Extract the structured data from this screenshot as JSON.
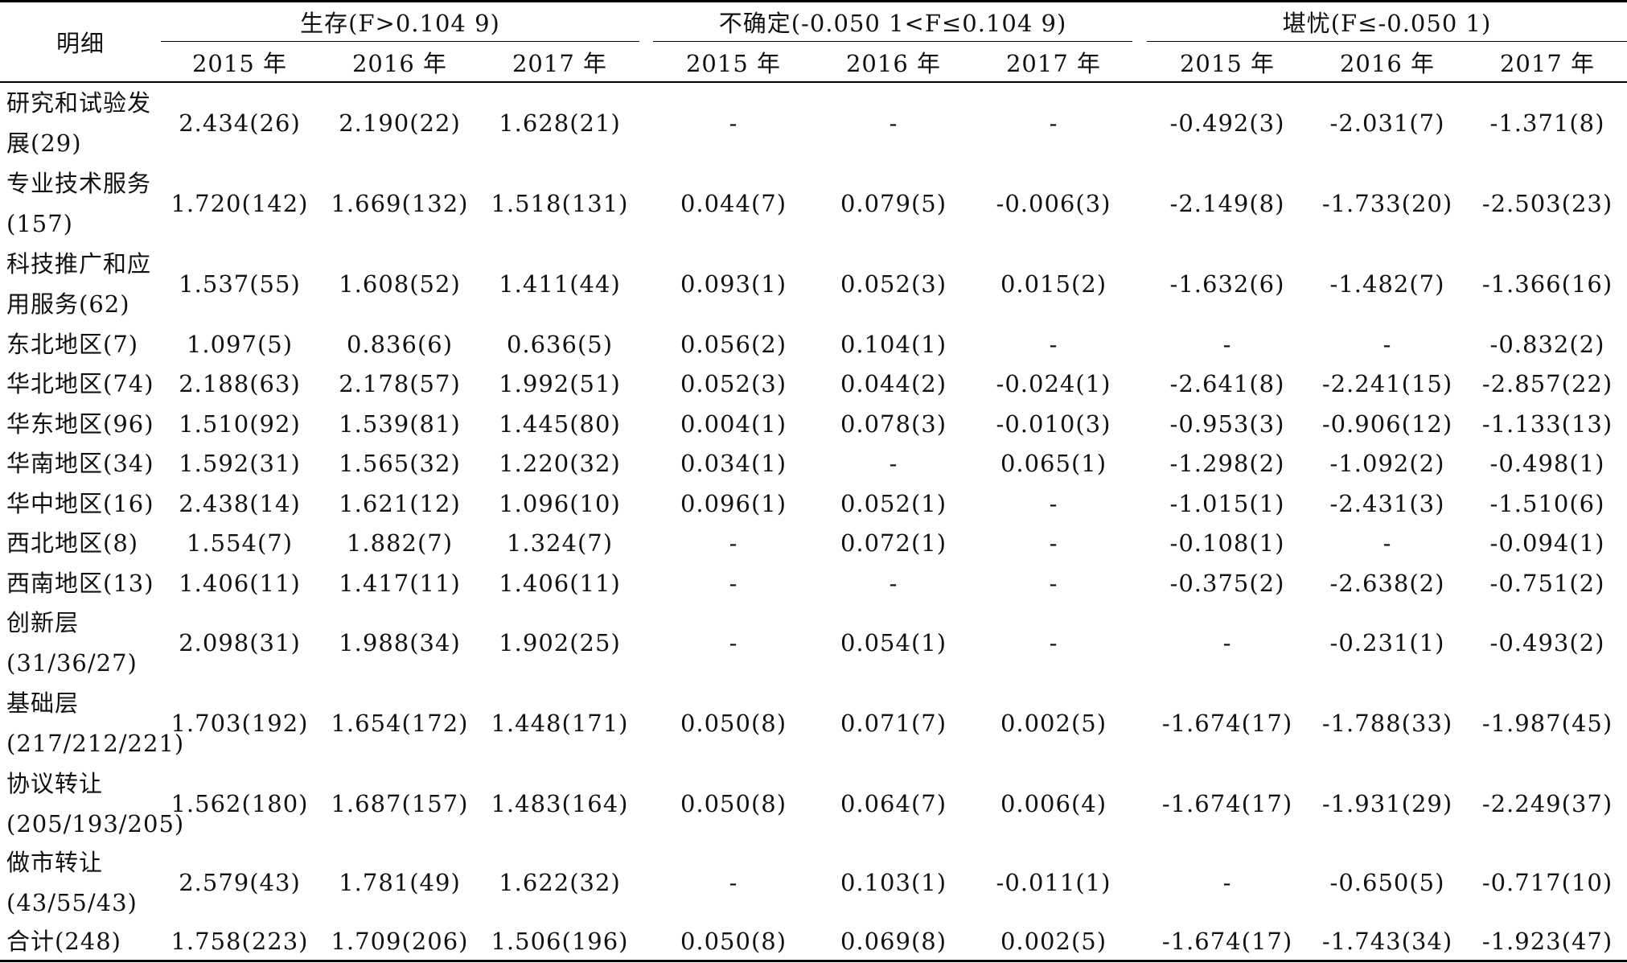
{
  "table": {
    "corner_header": "明细",
    "groups": [
      {
        "label": "生存(F>0.104 9)",
        "years": [
          "2015 年",
          "2016 年",
          "2017 年"
        ]
      },
      {
        "label": "不确定(-0.050 1<F≤0.104 9)",
        "years": [
          "2015 年",
          "2016 年",
          "2017 年"
        ]
      },
      {
        "label": "堪忧(F≤-0.050 1)",
        "years": [
          "2015 年",
          "2016 年",
          "2017 年"
        ]
      }
    ],
    "rows": [
      {
        "label": "研究和试验发展(29)",
        "cells": [
          "2.434(26)",
          "2.190(22)",
          "1.628(21)",
          "-",
          "-",
          "-",
          "-0.492(3)",
          "-2.031(7)",
          "-1.371(8)"
        ]
      },
      {
        "label": "专业技术服务(157)",
        "cells": [
          "1.720(142)",
          "1.669(132)",
          "1.518(131)",
          "0.044(7)",
          "0.079(5)",
          "-0.006(3)",
          "-2.149(8)",
          "-1.733(20)",
          "-2.503(23)"
        ]
      },
      {
        "label": "科技推广和应用服务(62)",
        "cells": [
          "1.537(55)",
          "1.608(52)",
          "1.411(44)",
          "0.093(1)",
          "0.052(3)",
          "0.015(2)",
          "-1.632(6)",
          "-1.482(7)",
          "-1.366(16)"
        ]
      },
      {
        "label": "东北地区(7)",
        "cells": [
          "1.097(5)",
          "0.836(6)",
          "0.636(5)",
          "0.056(2)",
          "0.104(1)",
          "-",
          "-",
          "-",
          "-0.832(2)"
        ]
      },
      {
        "label": "华北地区(74)",
        "cells": [
          "2.188(63)",
          "2.178(57)",
          "1.992(51)",
          "0.052(3)",
          "0.044(2)",
          "-0.024(1)",
          "-2.641(8)",
          "-2.241(15)",
          "-2.857(22)"
        ]
      },
      {
        "label": "华东地区(96)",
        "cells": [
          "1.510(92)",
          "1.539(81)",
          "1.445(80)",
          "0.004(1)",
          "0.078(3)",
          "-0.010(3)",
          "-0.953(3)",
          "-0.906(12)",
          "-1.133(13)"
        ]
      },
      {
        "label": "华南地区(34)",
        "cells": [
          "1.592(31)",
          "1.565(32)",
          "1.220(32)",
          "0.034(1)",
          "-",
          "0.065(1)",
          "-1.298(2)",
          "-1.092(2)",
          "-0.498(1)"
        ]
      },
      {
        "label": "华中地区(16)",
        "cells": [
          "2.438(14)",
          "1.621(12)",
          "1.096(10)",
          "0.096(1)",
          "0.052(1)",
          "-",
          "-1.015(1)",
          "-2.431(3)",
          "-1.510(6)"
        ]
      },
      {
        "label": "西北地区(8)",
        "cells": [
          "1.554(7)",
          "1.882(7)",
          "1.324(7)",
          "-",
          "0.072(1)",
          "-",
          "-0.108(1)",
          "-",
          "-0.094(1)"
        ]
      },
      {
        "label": "西南地区(13)",
        "cells": [
          "1.406(11)",
          "1.417(11)",
          "1.406(11)",
          "-",
          "-",
          "-",
          "-0.375(2)",
          "-2.638(2)",
          "-0.751(2)"
        ]
      },
      {
        "label": "创新层(31/36/27)",
        "cells": [
          "2.098(31)",
          "1.988(34)",
          "1.902(25)",
          "-",
          "0.054(1)",
          "-",
          "-",
          "-0.231(1)",
          "-0.493(2)"
        ]
      },
      {
        "label": "基础层(217/212/221)",
        "cells": [
          "1.703(192)",
          "1.654(172)",
          "1.448(171)",
          "0.050(8)",
          "0.071(7)",
          "0.002(5)",
          "-1.674(17)",
          "-1.788(33)",
          "-1.987(45)"
        ]
      },
      {
        "label": "协议转让(205/193/205)",
        "cells": [
          "1.562(180)",
          "1.687(157)",
          "1.483(164)",
          "0.050(8)",
          "0.064(7)",
          "0.006(4)",
          "-1.674(17)",
          "-1.931(29)",
          "-2.249(37)"
        ]
      },
      {
        "label": "做市转让(43/55/43)",
        "cells": [
          "2.579(43)",
          "1.781(49)",
          "1.622(32)",
          "-",
          "0.103(1)",
          "-0.011(1)",
          "-",
          "-0.650(5)",
          "-0.717(10)"
        ]
      },
      {
        "label": "合计(248)",
        "cells": [
          "1.758(223)",
          "1.709(206)",
          "1.506(196)",
          "0.050(8)",
          "0.069(8)",
          "0.002(5)",
          "-1.674(17)",
          "-1.743(34)",
          "-1.923(47)"
        ]
      }
    ]
  }
}
